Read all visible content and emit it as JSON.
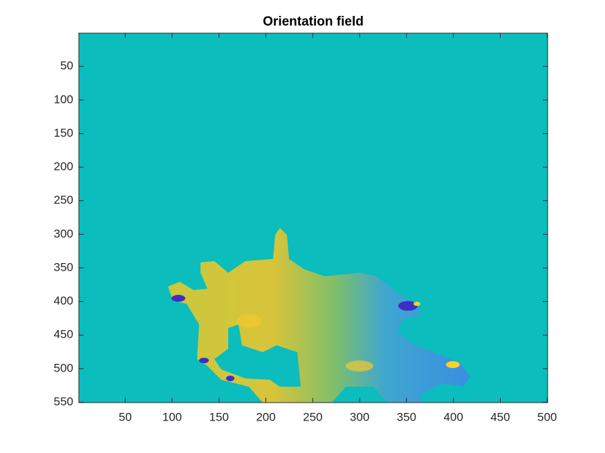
{
  "chart_data": {
    "type": "image",
    "title": "Orientation field",
    "color": "#0bbdbd",
    "xlim": [
      0.5,
      500.5
    ],
    "ylim": [
      0.5,
      550.5
    ],
    "y_reversed": true,
    "xticks": [
      50,
      100,
      150,
      200,
      250,
      300,
      350,
      400,
      450,
      500
    ],
    "yticks": [
      50,
      100,
      150,
      200,
      250,
      300,
      350,
      400,
      450,
      500,
      550
    ]
  }
}
